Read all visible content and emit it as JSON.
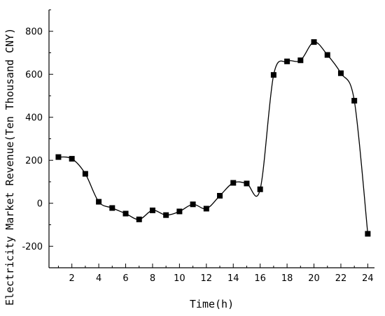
{
  "chart_data": {
    "type": "line",
    "title": "",
    "xlabel": "Time(h)",
    "ylabel": "Electricity Market Revenue(Ten Thousand CNY)",
    "xlim": [
      0.3,
      24.5
    ],
    "ylim": [
      -300,
      900
    ],
    "xticks": [
      2,
      4,
      6,
      8,
      10,
      12,
      14,
      16,
      18,
      20,
      22,
      24
    ],
    "yticks": [
      -200,
      0,
      200,
      400,
      600,
      800
    ],
    "grid": false,
    "marker": "square",
    "line_color": "#000000",
    "series": [
      {
        "x": [
          1,
          2,
          3,
          4,
          5,
          6,
          7,
          8,
          9,
          10,
          11,
          12,
          13,
          14,
          15,
          16,
          17,
          18,
          19,
          20,
          21,
          22,
          23,
          24
        ],
        "values": [
          215,
          207,
          137,
          7,
          -22,
          -48,
          -75,
          -33,
          -55,
          -38,
          -5,
          -25,
          35,
          95,
          92,
          65,
          597,
          660,
          665,
          750,
          690,
          605,
          477,
          -142
        ]
      }
    ]
  }
}
